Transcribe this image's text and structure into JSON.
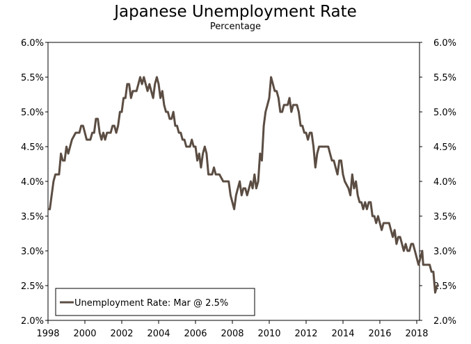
{
  "chart_data": {
    "type": "line",
    "title": "Japanese Unemployment Rate",
    "subtitle": "Percentage",
    "xlabel": "",
    "ylabel": "",
    "xlim": [
      1998.0,
      2018.2
    ],
    "ylim": [
      2.0,
      6.0
    ],
    "x_ticks": [
      1998,
      2000,
      2002,
      2004,
      2006,
      2008,
      2010,
      2012,
      2014,
      2016,
      2018
    ],
    "x_tick_labels": [
      "1998",
      "2000",
      "2002",
      "2004",
      "2006",
      "2008",
      "2010",
      "2012",
      "2014",
      "2016",
      "2018"
    ],
    "y_ticks": [
      2.0,
      2.5,
      3.0,
      3.5,
      4.0,
      4.5,
      5.0,
      5.5,
      6.0
    ],
    "y_tick_labels": [
      "2.0%",
      "2.5%",
      "3.0%",
      "3.5%",
      "4.0%",
      "4.5%",
      "5.0%",
      "5.5%",
      "6.0%"
    ],
    "grid": false,
    "legend_position": "bottom-left",
    "line_color": "#5b4d43",
    "series": [
      {
        "name": "Unemployment Rate: Mar @ 2.5%",
        "points": [
          [
            1998.0,
            3.6
          ],
          [
            1998.1,
            3.6
          ],
          [
            1998.3,
            4.0
          ],
          [
            1998.4,
            4.1
          ],
          [
            1998.6,
            4.1
          ],
          [
            1998.7,
            4.4
          ],
          [
            1998.8,
            4.3
          ],
          [
            1998.9,
            4.3
          ],
          [
            1999.0,
            4.5
          ],
          [
            1999.1,
            4.4
          ],
          [
            1999.3,
            4.6
          ],
          [
            1999.5,
            4.7
          ],
          [
            1999.7,
            4.7
          ],
          [
            1999.8,
            4.8
          ],
          [
            1999.9,
            4.8
          ],
          [
            2000.0,
            4.7
          ],
          [
            2000.1,
            4.6
          ],
          [
            2000.3,
            4.6
          ],
          [
            2000.4,
            4.7
          ],
          [
            2000.5,
            4.7
          ],
          [
            2000.6,
            4.9
          ],
          [
            2000.7,
            4.9
          ],
          [
            2000.8,
            4.7
          ],
          [
            2000.9,
            4.6
          ],
          [
            2001.0,
            4.7
          ],
          [
            2001.1,
            4.6
          ],
          [
            2001.2,
            4.7
          ],
          [
            2001.4,
            4.7
          ],
          [
            2001.5,
            4.8
          ],
          [
            2001.6,
            4.8
          ],
          [
            2001.7,
            4.7
          ],
          [
            2001.8,
            4.8
          ],
          [
            2001.9,
            5.0
          ],
          [
            2002.0,
            5.0
          ],
          [
            2002.1,
            5.2
          ],
          [
            2002.2,
            5.2
          ],
          [
            2002.3,
            5.4
          ],
          [
            2002.4,
            5.4
          ],
          [
            2002.5,
            5.2
          ],
          [
            2002.6,
            5.3
          ],
          [
            2002.8,
            5.3
          ],
          [
            2002.9,
            5.4
          ],
          [
            2003.0,
            5.5
          ],
          [
            2003.1,
            5.4
          ],
          [
            2003.2,
            5.5
          ],
          [
            2003.3,
            5.4
          ],
          [
            2003.4,
            5.3
          ],
          [
            2003.5,
            5.4
          ],
          [
            2003.6,
            5.3
          ],
          [
            2003.7,
            5.2
          ],
          [
            2003.8,
            5.4
          ],
          [
            2003.9,
            5.5
          ],
          [
            2004.0,
            5.4
          ],
          [
            2004.1,
            5.2
          ],
          [
            2004.2,
            5.3
          ],
          [
            2004.3,
            5.1
          ],
          [
            2004.4,
            5.0
          ],
          [
            2004.5,
            5.0
          ],
          [
            2004.6,
            4.9
          ],
          [
            2004.7,
            4.9
          ],
          [
            2004.8,
            5.0
          ],
          [
            2004.9,
            4.8
          ],
          [
            2005.0,
            4.8
          ],
          [
            2005.1,
            4.7
          ],
          [
            2005.2,
            4.7
          ],
          [
            2005.3,
            4.6
          ],
          [
            2005.4,
            4.6
          ],
          [
            2005.5,
            4.5
          ],
          [
            2005.7,
            4.5
          ],
          [
            2005.8,
            4.6
          ],
          [
            2005.9,
            4.5
          ],
          [
            2006.0,
            4.5
          ],
          [
            2006.1,
            4.3
          ],
          [
            2006.2,
            4.4
          ],
          [
            2006.3,
            4.2
          ],
          [
            2006.4,
            4.4
          ],
          [
            2006.5,
            4.5
          ],
          [
            2006.6,
            4.4
          ],
          [
            2006.7,
            4.1
          ],
          [
            2006.9,
            4.1
          ],
          [
            2007.0,
            4.2
          ],
          [
            2007.1,
            4.1
          ],
          [
            2007.3,
            4.1
          ],
          [
            2007.5,
            4.0
          ],
          [
            2007.8,
            4.0
          ],
          [
            2007.9,
            3.8
          ],
          [
            2008.0,
            3.7
          ],
          [
            2008.1,
            3.6
          ],
          [
            2008.2,
            3.8
          ],
          [
            2008.3,
            3.9
          ],
          [
            2008.4,
            4.0
          ],
          [
            2008.5,
            3.8
          ],
          [
            2008.6,
            3.9
          ],
          [
            2008.7,
            3.9
          ],
          [
            2008.8,
            3.8
          ],
          [
            2008.9,
            3.9
          ],
          [
            2009.0,
            4.0
          ],
          [
            2009.1,
            3.9
          ],
          [
            2009.2,
            4.1
          ],
          [
            2009.3,
            3.9
          ],
          [
            2009.4,
            4.0
          ],
          [
            2009.5,
            4.4
          ],
          [
            2009.6,
            4.3
          ],
          [
            2009.7,
            4.8
          ],
          [
            2009.8,
            5.0
          ],
          [
            2009.9,
            5.1
          ],
          [
            2010.0,
            5.2
          ],
          [
            2010.1,
            5.5
          ],
          [
            2010.2,
            5.4
          ],
          [
            2010.3,
            5.3
          ],
          [
            2010.4,
            5.3
          ],
          [
            2010.5,
            5.2
          ],
          [
            2010.6,
            5.0
          ],
          [
            2010.7,
            5.0
          ],
          [
            2010.8,
            5.1
          ],
          [
            2010.9,
            5.1
          ],
          [
            2011.0,
            5.1
          ],
          [
            2011.1,
            5.2
          ],
          [
            2011.2,
            5.0
          ],
          [
            2011.3,
            5.1
          ],
          [
            2011.5,
            5.1
          ],
          [
            2011.6,
            5.0
          ],
          [
            2011.7,
            4.8
          ],
          [
            2011.8,
            4.8
          ],
          [
            2011.9,
            4.7
          ],
          [
            2012.0,
            4.7
          ],
          [
            2012.1,
            4.6
          ],
          [
            2012.2,
            4.7
          ],
          [
            2012.3,
            4.7
          ],
          [
            2012.4,
            4.5
          ],
          [
            2012.5,
            4.2
          ],
          [
            2012.6,
            4.4
          ],
          [
            2012.7,
            4.5
          ],
          [
            2012.9,
            4.5
          ],
          [
            2013.0,
            4.5
          ],
          [
            2013.2,
            4.5
          ],
          [
            2013.3,
            4.4
          ],
          [
            2013.4,
            4.3
          ],
          [
            2013.5,
            4.3
          ],
          [
            2013.6,
            4.2
          ],
          [
            2013.7,
            4.1
          ],
          [
            2013.8,
            4.3
          ],
          [
            2013.9,
            4.3
          ],
          [
            2014.0,
            4.1
          ],
          [
            2014.1,
            4.0
          ],
          [
            2014.3,
            3.9
          ],
          [
            2014.4,
            3.8
          ],
          [
            2014.5,
            4.1
          ],
          [
            2014.6,
            3.9
          ],
          [
            2014.7,
            4.0
          ],
          [
            2014.8,
            3.8
          ],
          [
            2014.9,
            3.7
          ],
          [
            2015.0,
            3.7
          ],
          [
            2015.1,
            3.6
          ],
          [
            2015.2,
            3.7
          ],
          [
            2015.3,
            3.6
          ],
          [
            2015.4,
            3.7
          ],
          [
            2015.5,
            3.7
          ],
          [
            2015.6,
            3.5
          ],
          [
            2015.7,
            3.5
          ],
          [
            2015.8,
            3.4
          ],
          [
            2015.9,
            3.5
          ],
          [
            2016.0,
            3.4
          ],
          [
            2016.1,
            3.3
          ],
          [
            2016.2,
            3.4
          ],
          [
            2016.3,
            3.4
          ],
          [
            2016.5,
            3.4
          ],
          [
            2016.6,
            3.3
          ],
          [
            2016.7,
            3.2
          ],
          [
            2016.8,
            3.3
          ],
          [
            2016.9,
            3.1
          ],
          [
            2017.0,
            3.2
          ],
          [
            2017.1,
            3.2
          ],
          [
            2017.2,
            3.1
          ],
          [
            2017.3,
            3.0
          ],
          [
            2017.4,
            3.1
          ],
          [
            2017.5,
            3.0
          ],
          [
            2017.6,
            3.0
          ],
          [
            2017.7,
            3.1
          ],
          [
            2017.8,
            3.1
          ],
          [
            2017.9,
            3.0
          ],
          [
            2018.0,
            2.9
          ],
          [
            2018.1,
            2.8
          ],
          [
            2018.2,
            2.9
          ],
          [
            2018.3,
            3.0
          ],
          [
            2018.35,
            2.8
          ],
          [
            2018.5,
            2.8
          ],
          [
            2018.6,
            2.8
          ],
          [
            2018.7,
            2.8
          ],
          [
            2018.8,
            2.7
          ],
          [
            2018.9,
            2.7
          ],
          [
            2019.0,
            2.4
          ],
          [
            2019.1,
            2.5
          ],
          [
            2019.2,
            2.5
          ]
        ]
      }
    ]
  }
}
